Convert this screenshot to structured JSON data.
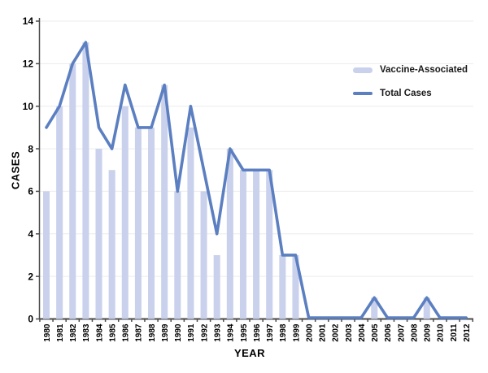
{
  "colors": {
    "background": "#ffffff",
    "bar_fill": "#c9d1ec",
    "line_stroke": "#5b7fc0",
    "grid": "#ececec",
    "axis": "#4a4a4a",
    "tick_text": "#000000"
  },
  "chart_data": {
    "type": "bar",
    "subtype": "bar+line combo",
    "title": "",
    "xlabel": "YEAR",
    "ylabel": "CASES",
    "ylim": [
      0,
      14
    ],
    "yticks": [
      0,
      2,
      4,
      6,
      8,
      10,
      12,
      14
    ],
    "grid": "horizontal",
    "legend_position": "top-right-inside",
    "x_tick_rotation": -90,
    "categories": [
      1980,
      1981,
      1982,
      1983,
      1984,
      1985,
      1986,
      1987,
      1988,
      1989,
      1990,
      1991,
      1992,
      1993,
      1994,
      1995,
      1996,
      1997,
      1998,
      1999,
      2000,
      2001,
      2002,
      2003,
      2004,
      2005,
      2006,
      2007,
      2008,
      2009,
      2010,
      2011,
      2012
    ],
    "series": [
      {
        "name": "Vaccine-Associated",
        "type": "bar",
        "values": [
          6,
          10,
          12,
          13,
          8,
          7,
          10,
          9,
          9,
          11,
          6,
          9,
          6,
          3,
          8,
          7,
          7,
          7,
          3,
          3,
          0,
          0,
          0,
          0,
          0,
          1,
          0,
          0,
          0,
          1,
          0,
          0,
          0
        ]
      },
      {
        "name": "Total Cases",
        "type": "line",
        "values": [
          9,
          10,
          12,
          13,
          9,
          8,
          11,
          9,
          9,
          11,
          6,
          10,
          7,
          4,
          8,
          7,
          7,
          7,
          3,
          3,
          0,
          0,
          0,
          0,
          0,
          1,
          0,
          0,
          0,
          1,
          0,
          0,
          0
        ]
      }
    ]
  }
}
